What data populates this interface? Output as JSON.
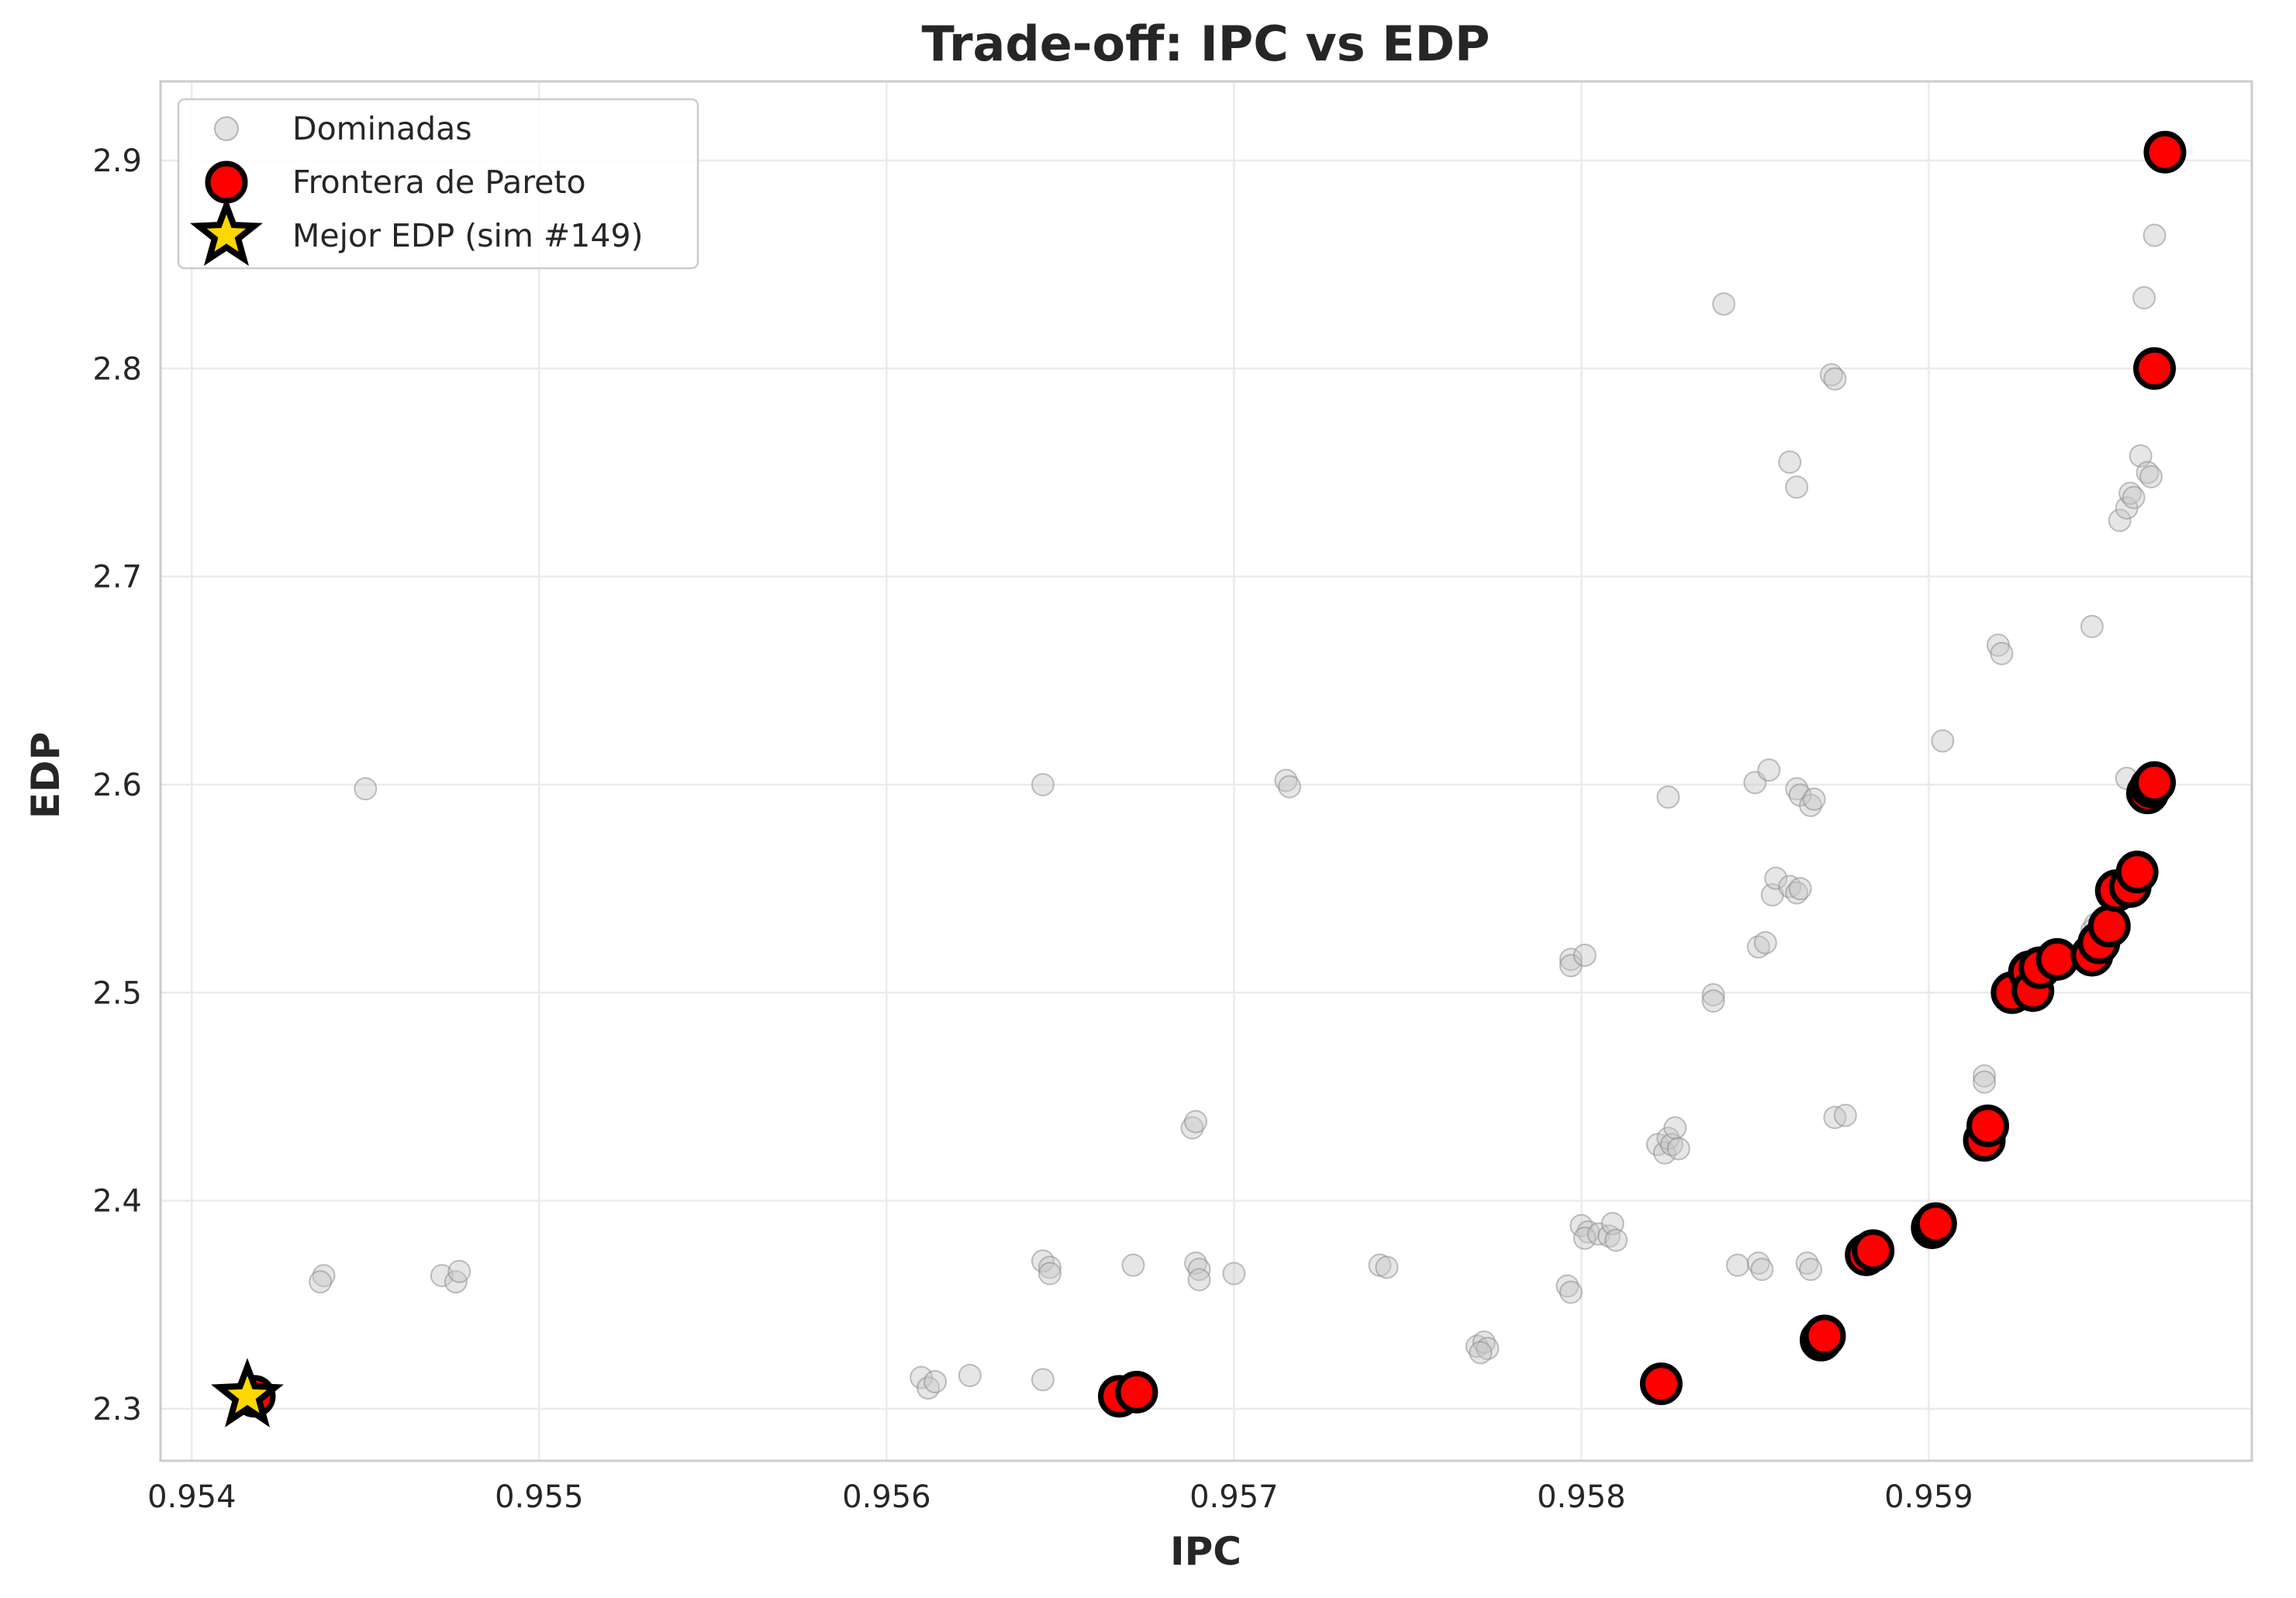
{
  "chart_data": {
    "type": "scatter",
    "title": "Trade-off: IPC vs EDP",
    "xlabel": "IPC",
    "ylabel": "EDP",
    "xlim": [
      0.95391,
      0.95993
    ],
    "ylim": [
      2.275,
      2.938
    ],
    "xticks": [
      "0.954",
      "0.955",
      "0.956",
      "0.957",
      "0.958",
      "0.959"
    ],
    "xtick_values": [
      0.954,
      0.955,
      0.956,
      0.957,
      0.958,
      0.959
    ],
    "yticks": [
      "2.3",
      "2.4",
      "2.5",
      "2.6",
      "2.7",
      "2.8",
      "2.9"
    ],
    "ytick_values": [
      2.3,
      2.4,
      2.5,
      2.6,
      2.7,
      2.8,
      2.9
    ],
    "grid": true,
    "legend_position": "top-left",
    "colors": {
      "dominated_fill": "#c8c8c8",
      "dominated_edge": "#8c8c8c",
      "pareto_fill": "#ff0000",
      "pareto_edge": "#000000",
      "best_fill": "#ffd700",
      "best_edge": "#000000",
      "grid": "#ebebeb",
      "frame": "#cccccc"
    },
    "series": [
      {
        "name": "Dominadas",
        "marker": "circle",
        "points": [
          [
            0.95438,
            2.364
          ],
          [
            0.95437,
            2.361
          ],
          [
            0.9545,
            2.598
          ],
          [
            0.95472,
            2.364
          ],
          [
            0.95476,
            2.361
          ],
          [
            0.95477,
            2.366
          ],
          [
            0.9561,
            2.315
          ],
          [
            0.95612,
            2.31
          ],
          [
            0.95614,
            2.313
          ],
          [
            0.95624,
            2.316
          ],
          [
            0.95645,
            2.6
          ],
          [
            0.95645,
            2.314
          ],
          [
            0.95645,
            2.371
          ],
          [
            0.95647,
            2.368
          ],
          [
            0.95647,
            2.365
          ],
          [
            0.95671,
            2.369
          ],
          [
            0.95688,
            2.435
          ],
          [
            0.95689,
            2.438
          ],
          [
            0.95689,
            2.37
          ],
          [
            0.9569,
            2.367
          ],
          [
            0.9569,
            2.362
          ],
          [
            0.957,
            2.365
          ],
          [
            0.95715,
            2.602
          ],
          [
            0.95716,
            2.599
          ],
          [
            0.95742,
            2.369
          ],
          [
            0.95744,
            2.368
          ],
          [
            0.9577,
            2.33
          ],
          [
            0.95772,
            2.332
          ],
          [
            0.95773,
            2.329
          ],
          [
            0.95771,
            2.327
          ],
          [
            0.95796,
            2.359
          ],
          [
            0.95797,
            2.356
          ],
          [
            0.95797,
            2.516
          ],
          [
            0.95797,
            2.513
          ],
          [
            0.95801,
            2.518
          ],
          [
            0.958,
            2.388
          ],
          [
            0.95802,
            2.385
          ],
          [
            0.95801,
            2.382
          ],
          [
            0.95805,
            2.384
          ],
          [
            0.95808,
            2.383
          ],
          [
            0.95809,
            2.389
          ],
          [
            0.9581,
            2.381
          ],
          [
            0.95822,
            2.427
          ],
          [
            0.95824,
            2.423
          ],
          [
            0.95825,
            2.43
          ],
          [
            0.95826,
            2.427
          ],
          [
            0.95827,
            2.435
          ],
          [
            0.95828,
            2.425
          ],
          [
            0.95825,
            2.594
          ],
          [
            0.95838,
            2.499
          ],
          [
            0.95838,
            2.496
          ],
          [
            0.95841,
            2.831
          ],
          [
            0.95845,
            2.369
          ],
          [
            0.95851,
            2.37
          ],
          [
            0.95852,
            2.367
          ],
          [
            0.9585,
            2.601
          ],
          [
            0.95851,
            2.522
          ],
          [
            0.95853,
            2.524
          ],
          [
            0.95854,
            2.607
          ],
          [
            0.95855,
            2.547
          ],
          [
            0.95856,
            2.555
          ],
          [
            0.9586,
            2.551
          ],
          [
            0.95862,
            2.548
          ],
          [
            0.95863,
            2.55
          ],
          [
            0.9586,
            2.755
          ],
          [
            0.95862,
            2.743
          ],
          [
            0.95862,
            2.598
          ],
          [
            0.95863,
            2.595
          ],
          [
            0.95865,
            2.37
          ],
          [
            0.95866,
            2.367
          ],
          [
            0.95866,
            2.59
          ],
          [
            0.95867,
            2.593
          ],
          [
            0.95872,
            2.797
          ],
          [
            0.95873,
            2.795
          ],
          [
            0.95873,
            2.44
          ],
          [
            0.95876,
            2.441
          ],
          [
            0.95904,
            2.621
          ],
          [
            0.95916,
            2.46
          ],
          [
            0.95916,
            2.457
          ],
          [
            0.9592,
            2.667
          ],
          [
            0.95921,
            2.663
          ],
          [
            0.95947,
            2.676
          ],
          [
            0.95947,
            2.53
          ],
          [
            0.95948,
            2.533
          ],
          [
            0.95955,
            2.727
          ],
          [
            0.95957,
            2.733
          ],
          [
            0.95958,
            2.74
          ],
          [
            0.95959,
            2.738
          ],
          [
            0.95957,
            2.603
          ],
          [
            0.9596,
            2.595
          ],
          [
            0.95961,
            2.758
          ],
          [
            0.95963,
            2.75
          ],
          [
            0.95964,
            2.748
          ],
          [
            0.95962,
            2.834
          ],
          [
            0.95965,
            2.864
          ]
        ]
      },
      {
        "name": "Frontera de Pareto",
        "marker": "circle",
        "points": [
          [
            0.95418,
            2.306
          ],
          [
            0.95667,
            2.306
          ],
          [
            0.95672,
            2.308
          ],
          [
            0.95823,
            2.312
          ],
          [
            0.95869,
            2.333
          ],
          [
            0.9587,
            2.335
          ],
          [
            0.95882,
            2.374
          ],
          [
            0.95884,
            2.376
          ],
          [
            0.95901,
            2.387
          ],
          [
            0.95902,
            2.389
          ],
          [
            0.95916,
            2.429
          ],
          [
            0.95917,
            2.436
          ],
          [
            0.95924,
            2.5
          ],
          [
            0.95929,
            2.51
          ],
          [
            0.9593,
            2.501
          ],
          [
            0.95932,
            2.512
          ],
          [
            0.95937,
            2.516
          ],
          [
            0.95947,
            2.518
          ],
          [
            0.95949,
            2.524
          ],
          [
            0.95952,
            2.532
          ],
          [
            0.95954,
            2.549
          ],
          [
            0.95958,
            2.551
          ],
          [
            0.9596,
            2.558
          ],
          [
            0.95963,
            2.596
          ],
          [
            0.95964,
            2.599
          ],
          [
            0.95965,
            2.601
          ],
          [
            0.95965,
            2.8
          ],
          [
            0.95968,
            2.904
          ]
        ]
      },
      {
        "name": "Mejor EDP (sim #149)",
        "marker": "star",
        "points": [
          [
            0.95416,
            2.306
          ]
        ]
      }
    ]
  }
}
